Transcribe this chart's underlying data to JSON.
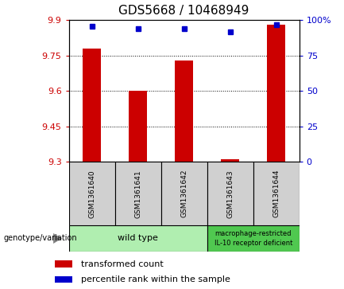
{
  "title": "GDS5668 / 10468949",
  "samples": [
    "GSM1361640",
    "GSM1361641",
    "GSM1361642",
    "GSM1361643",
    "GSM1361644"
  ],
  "red_values": [
    9.78,
    9.6,
    9.73,
    9.31,
    9.88
  ],
  "blue_values": [
    96,
    94,
    94,
    92,
    97
  ],
  "ylim_left": [
    9.3,
    9.9
  ],
  "ylim_right": [
    0,
    100
  ],
  "yticks_left": [
    9.3,
    9.45,
    9.6,
    9.75,
    9.9
  ],
  "yticks_right": [
    0,
    25,
    50,
    75,
    100
  ],
  "ytick_labels_left": [
    "9.3",
    "9.45",
    "9.6",
    "9.75",
    "9.9"
  ],
  "ytick_labels_right": [
    "0",
    "25",
    "50",
    "75",
    "100%"
  ],
  "grid_yticks": [
    9.45,
    9.6,
    9.75
  ],
  "red_color": "#cc0000",
  "blue_color": "#0000cc",
  "bar_width": 0.4,
  "genotype_label": "genotype/variation",
  "group1_label": "wild type",
  "group2_label": "macrophage-restricted\nIL-10 receptor deficient",
  "legend_red": "transformed count",
  "legend_blue": "percentile rank within the sample",
  "bg_color_plot": "#ffffff",
  "bg_color_gray": "#d0d0d0",
  "bg_color_group1": "#b0eeb0",
  "bg_color_group2": "#50c850",
  "title_fontsize": 11,
  "tick_fontsize": 8,
  "legend_fontsize": 8,
  "sample_label_fontsize": 6.5,
  "group_label_fontsize": 8,
  "group2_label_fontsize": 6
}
